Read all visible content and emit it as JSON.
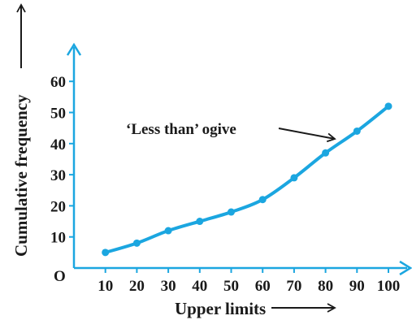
{
  "colors": {
    "curve": "#1ba6e0",
    "axis": "#1ba6e0",
    "text": "#1a1a1a"
  },
  "chart_data": {
    "type": "line",
    "title": "",
    "xlabel": "Upper limits",
    "ylabel": "Cumulative frequency",
    "origin_label": "O",
    "x_ticks": [
      "10",
      "20",
      "30",
      "40",
      "50",
      "60",
      "70",
      "80",
      "90",
      "100"
    ],
    "y_ticks": [
      "10",
      "20",
      "30",
      "40",
      "50",
      "60"
    ],
    "xlim": [
      0,
      100
    ],
    "ylim": [
      0,
      60
    ],
    "grid": false,
    "series": [
      {
        "x": [
          10,
          20,
          30,
          40,
          50,
          60,
          70,
          80,
          90,
          100
        ],
        "y": [
          5,
          8,
          12,
          15,
          18,
          22,
          29,
          37,
          44,
          52
        ]
      }
    ],
    "annotation": {
      "text": "‘Less than’ ogive"
    }
  }
}
